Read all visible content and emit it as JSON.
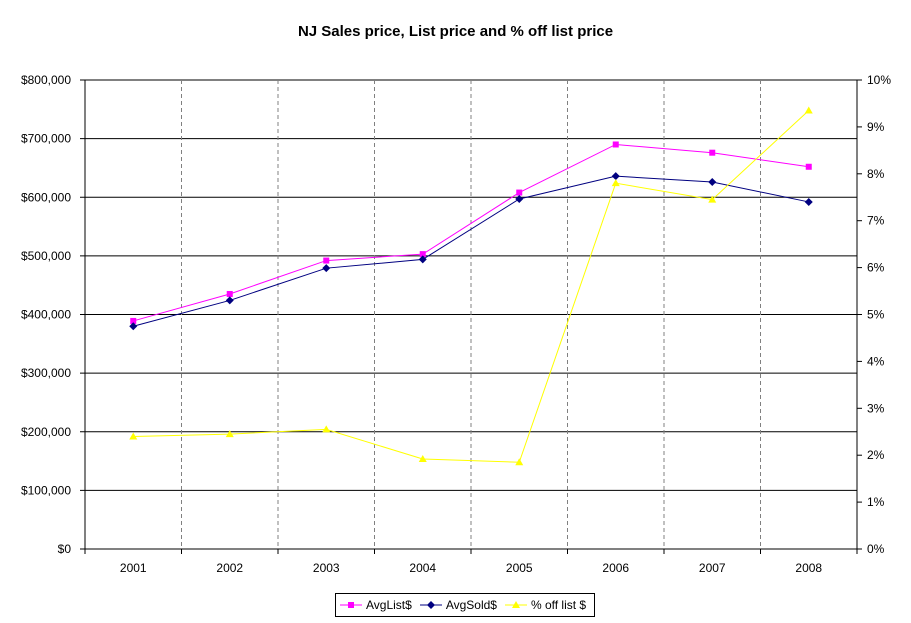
{
  "chart_data": {
    "type": "line",
    "title": "NJ Sales price, List price and % off list price",
    "categories": [
      "2001",
      "2002",
      "2003",
      "2004",
      "2005",
      "2006",
      "2007",
      "2008"
    ],
    "y_left": {
      "range": [
        0,
        800000
      ],
      "tick_labels": [
        "$0",
        "$100,000",
        "$200,000",
        "$300,000",
        "$400,000",
        "$500,000",
        "$600,000",
        "$700,000",
        "$800,000"
      ]
    },
    "y_right": {
      "range": [
        0,
        10
      ],
      "tick_labels": [
        "0%",
        "1%",
        "2%",
        "3%",
        "4%",
        "5%",
        "6%",
        "7%",
        "8%",
        "9%",
        "10%"
      ]
    },
    "series": [
      {
        "name": "AvgList$",
        "axis": "left",
        "color": "#ff00ff",
        "marker": "square",
        "values": [
          389000,
          435000,
          492000,
          503000,
          608000,
          690000,
          676000,
          652000
        ]
      },
      {
        "name": "AvgSold$",
        "axis": "left",
        "color": "#000080",
        "marker": "diamond",
        "values": [
          380000,
          424000,
          479000,
          494000,
          597000,
          636000,
          626000,
          592000
        ]
      },
      {
        "name": "% off list $",
        "axis": "right",
        "color": "#ffff00",
        "marker": "triangle",
        "values": [
          2.4,
          2.45,
          2.55,
          1.92,
          1.85,
          7.8,
          7.45,
          9.35
        ]
      }
    ],
    "grid": {
      "horizontal": "solid",
      "vertical": "dashed"
    },
    "legend_position": "bottom"
  }
}
